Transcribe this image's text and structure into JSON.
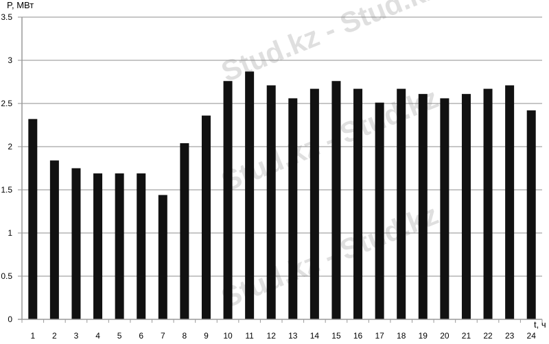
{
  "chart_data": {
    "type": "bar",
    "title": "",
    "ylabel": "P, МВт",
    "xlabel": "t, ч",
    "ylim": [
      0,
      3.5
    ],
    "yticks": [
      0,
      0.5,
      1,
      1.5,
      2,
      2.5,
      3,
      3.5
    ],
    "ytick_labels": [
      "0",
      "0.5",
      "1",
      "1.5",
      "2",
      "2.5",
      "3",
      "3.5"
    ],
    "grid": "horizontal",
    "legend": "none",
    "bar_color": "#111111",
    "grid_color": "#8c8c8c",
    "categories": [
      "1",
      "2",
      "3",
      "4",
      "5",
      "6",
      "7",
      "8",
      "9",
      "10",
      "11",
      "12",
      "13",
      "14",
      "15",
      "16",
      "17",
      "18",
      "19",
      "20",
      "21",
      "22",
      "23",
      "24"
    ],
    "values": [
      2.32,
      1.84,
      1.75,
      1.69,
      1.69,
      1.69,
      1.44,
      2.04,
      2.36,
      2.76,
      2.87,
      2.71,
      2.56,
      2.67,
      2.76,
      2.67,
      2.51,
      2.67,
      2.61,
      2.56,
      2.61,
      2.67,
      2.71,
      2.42
    ]
  },
  "watermark": "Stud.kz - Stud.kz"
}
